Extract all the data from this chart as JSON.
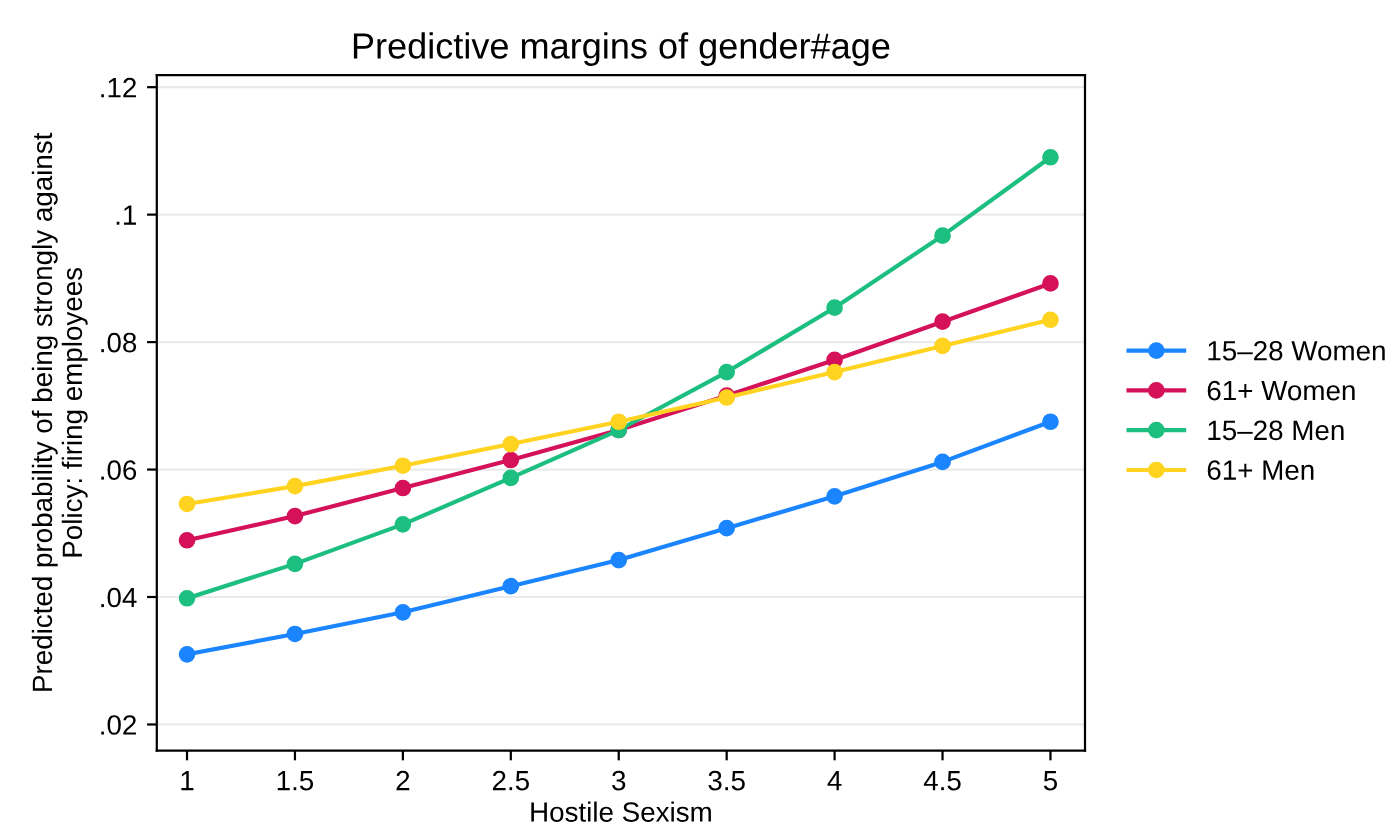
{
  "chart_data": {
    "type": "line",
    "title": "Predictive margins of gender#age",
    "xlabel": "Hostile Sexism",
    "ylabel": "Predicted probability of being strongly against\nPolicy: firing employees",
    "x": [
      1,
      1.5,
      2,
      2.5,
      3,
      3.5,
      4,
      4.5,
      5
    ],
    "series": [
      {
        "name": "15–28 Women",
        "color": "#1a85ff",
        "values": [
          0.031,
          0.0342,
          0.0376,
          0.0417,
          0.0458,
          0.0508,
          0.0558,
          0.0612,
          0.0675
        ]
      },
      {
        "name": "61+ Women",
        "color": "#d41159",
        "values": [
          0.0489,
          0.0527,
          0.0571,
          0.0615,
          0.0662,
          0.0716,
          0.0772,
          0.0832,
          0.0892
        ]
      },
      {
        "name": "15–28 Men",
        "color": "#1cbf7f",
        "values": [
          0.0398,
          0.0452,
          0.0514,
          0.0587,
          0.0662,
          0.0753,
          0.0854,
          0.0967,
          0.109
        ]
      },
      {
        "name": "61+ Men",
        "color": "#ffd320",
        "values": [
          0.0546,
          0.0574,
          0.0606,
          0.064,
          0.0675,
          0.0713,
          0.0753,
          0.0794,
          0.0835
        ]
      }
    ],
    "xlim": [
      0.86,
      5.16
    ],
    "xticks": [
      1,
      1.5,
      2,
      2.5,
      3,
      3.5,
      4,
      4.5,
      5
    ],
    "ylim": [
      0.0159,
      0.1219
    ],
    "yticks": [
      {
        "value": 0.02,
        "label": ".02"
      },
      {
        "value": 0.04,
        "label": ".04"
      },
      {
        "value": 0.06,
        "label": ".06"
      },
      {
        "value": 0.08,
        "label": ".08"
      },
      {
        "value": 0.1,
        "label": ".1"
      },
      {
        "value": 0.12,
        "label": ".12"
      }
    ],
    "grid": "y",
    "legend": "right",
    "marker": "circle",
    "line_style": "solid"
  }
}
